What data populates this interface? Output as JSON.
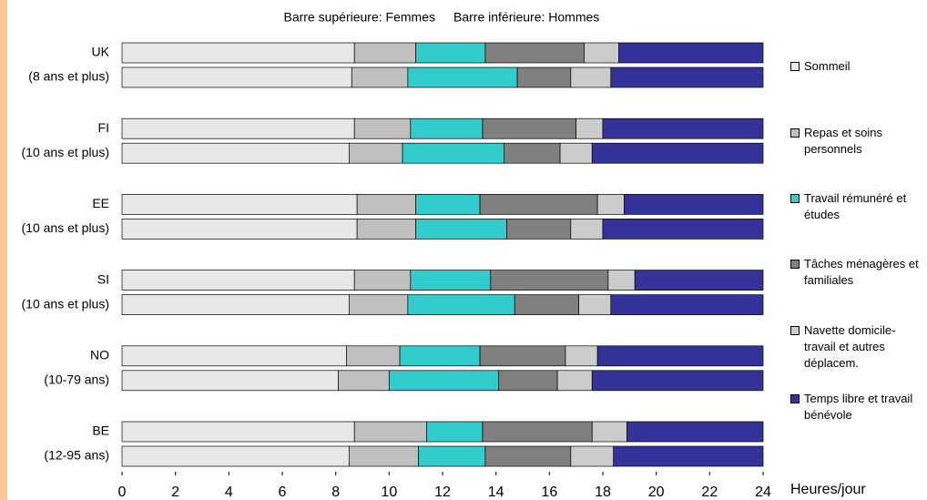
{
  "chart_data": {
    "type": "stacked-hbar",
    "annotations": [
      "Barre supérieure: Femmes",
      "Barre inférieure: Hommes"
    ],
    "x_label": "Heures/jour",
    "categories": [
      "UK",
      "(8 ans et plus)",
      "FI",
      "(10 ans et plus)",
      "EE",
      "(10 ans et plus)",
      "SI",
      "(10 ans et plus)",
      "NO",
      "(10-79 ans)",
      "BE",
      "(12-95 ans)"
    ],
    "series": [
      {
        "name": "Sommeil",
        "color": "#e8e8e8",
        "values": [
          8.7,
          8.6,
          8.7,
          8.5,
          8.8,
          8.8,
          8.7,
          8.5,
          8.4,
          8.1,
          8.7,
          8.5
        ]
      },
      {
        "name": "Repas et soins personnels",
        "color": "#c0c0c0",
        "values": [
          2.3,
          2.1,
          2.1,
          2.0,
          2.2,
          2.2,
          2.1,
          2.2,
          2.0,
          1.9,
          2.7,
          2.6
        ]
      },
      {
        "name": "Travail rémunéré et études",
        "color": "#33cccc",
        "values": [
          2.6,
          4.1,
          2.7,
          3.8,
          2.4,
          3.4,
          3.0,
          4.0,
          3.0,
          4.1,
          2.1,
          2.5
        ]
      },
      {
        "name": "Tâches ménagères et familiales",
        "color": "#808080",
        "values": [
          3.7,
          2.0,
          3.5,
          2.1,
          4.4,
          2.4,
          4.4,
          2.4,
          3.2,
          2.2,
          4.1,
          3.2
        ]
      },
      {
        "name": "Navette domicile-travail et autres déplacem.",
        "color": "#cccccc",
        "values": [
          1.3,
          1.5,
          1.0,
          1.2,
          1.0,
          1.2,
          1.0,
          1.2,
          1.2,
          1.3,
          1.3,
          1.6
        ]
      },
      {
        "name": "Temps libre et travail bénévole",
        "color": "#333399",
        "values": [
          5.4,
          5.7,
          6.0,
          6.4,
          5.2,
          6.0,
          4.8,
          5.7,
          6.2,
          6.4,
          5.1,
          5.6
        ]
      }
    ],
    "xlim": [
      0,
      24
    ],
    "xticks": [
      0,
      2,
      4,
      6,
      8,
      10,
      12,
      14,
      16,
      18,
      20,
      22,
      24
    ]
  }
}
